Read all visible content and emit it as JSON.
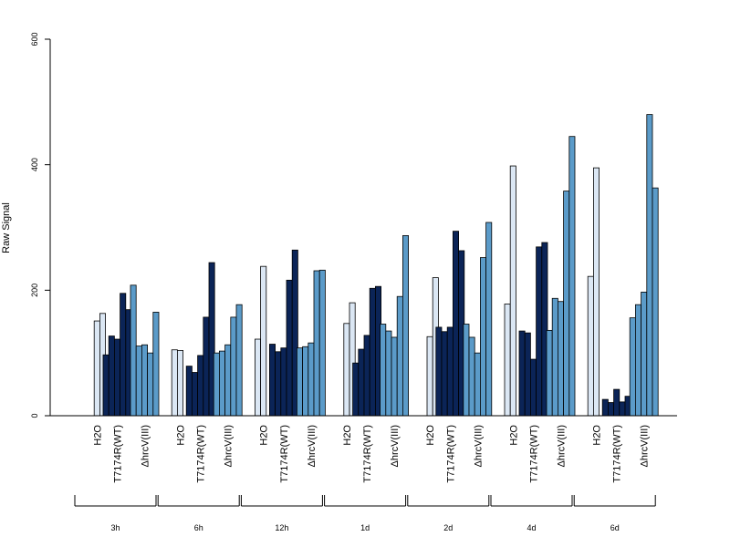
{
  "chart_data": {
    "type": "bar",
    "ylabel": "Raw Signal",
    "ylim": [
      0,
      600
    ],
    "yticks": [
      0,
      200,
      400,
      600
    ],
    "grid": false,
    "legend": "none",
    "group_labels": [
      "H2O",
      "T7174R(WT)",
      "ΔhrcV(III)"
    ],
    "group_colors": {
      "H2O": "#dbe7f4",
      "T7174R(WT)": "#0b2457",
      "ΔhrcV(III)": "#5b9bc9"
    },
    "timepoints": [
      {
        "label": "3h",
        "groups": [
          {
            "group": "H2O",
            "values": [
              0,
              151,
              163
            ]
          },
          {
            "group": "T7174R(WT)",
            "values": [
              97,
              127,
              122,
              195,
              169
            ]
          },
          {
            "group": "ΔhrcV(III)",
            "values": [
              208,
              111,
              113,
              100,
              165
            ]
          }
        ]
      },
      {
        "label": "6h",
        "groups": [
          {
            "group": "H2O",
            "values": [
              105,
              104,
              0
            ]
          },
          {
            "group": "T7174R(WT)",
            "values": [
              79,
              69,
              96,
              157,
              244
            ]
          },
          {
            "group": "ΔhrcV(III)",
            "values": [
              100,
              103,
              113,
              157,
              177
            ]
          }
        ]
      },
      {
        "label": "12h",
        "groups": [
          {
            "group": "H2O",
            "values": [
              122,
              238,
              0
            ]
          },
          {
            "group": "T7174R(WT)",
            "values": [
              114,
              102,
              108,
              216,
              264
            ]
          },
          {
            "group": "ΔhrcV(III)",
            "values": [
              108,
              110,
              116,
              231,
              232
            ]
          }
        ]
      },
      {
        "label": "1d",
        "groups": [
          {
            "group": "H2O",
            "values": [
              0,
              147,
              180
            ]
          },
          {
            "group": "T7174R(WT)",
            "values": [
              84,
              106,
              128,
              203,
              206
            ]
          },
          {
            "group": "ΔhrcV(III)",
            "values": [
              146,
              135,
              125,
              190,
              287
            ]
          }
        ]
      },
      {
        "label": "2d",
        "groups": [
          {
            "group": "H2O",
            "values": [
              0,
              126,
              220
            ]
          },
          {
            "group": "T7174R(WT)",
            "values": [
              141,
              134,
              141,
              294,
              263
            ]
          },
          {
            "group": "ΔhrcV(III)",
            "values": [
              146,
              125,
              100,
              252,
              308
            ]
          }
        ]
      },
      {
        "label": "4d",
        "groups": [
          {
            "group": "H2O",
            "values": [
              178,
              398,
              0
            ]
          },
          {
            "group": "T7174R(WT)",
            "values": [
              135,
              132,
              90,
              269,
              276
            ]
          },
          {
            "group": "ΔhrcV(III)",
            "values": [
              136,
              187,
              182,
              358,
              445
            ]
          }
        ]
      },
      {
        "label": "6d",
        "groups": [
          {
            "group": "H2O",
            "values": [
              222,
              395,
              0
            ]
          },
          {
            "group": "T7174R(WT)",
            "values": [
              26,
              21,
              42,
              22,
              31
            ]
          },
          {
            "group": "ΔhrcV(III)",
            "values": [
              156,
              177,
              197,
              480,
              363
            ]
          }
        ]
      }
    ]
  }
}
